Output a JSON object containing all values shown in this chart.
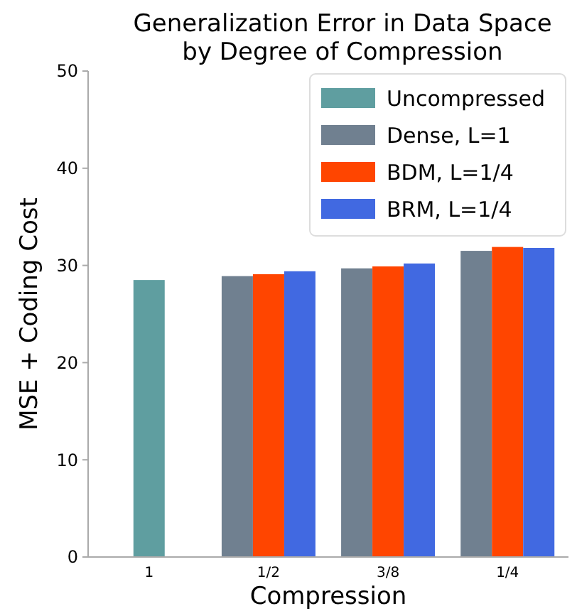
{
  "chart_data": {
    "type": "bar",
    "title": "Generalization Error in Data Space\nby Degree of Compression",
    "xlabel": "Compression",
    "ylabel": "MSE + Coding Cost",
    "categories": [
      "1",
      "1/2",
      "3/8",
      "1/4"
    ],
    "series": [
      {
        "name": "Uncompressed",
        "color": "#5f9ea0",
        "values": [
          28.5,
          null,
          null,
          null
        ]
      },
      {
        "name": "Dense, L=1",
        "color": "#708090",
        "values": [
          null,
          28.9,
          29.7,
          31.5
        ]
      },
      {
        "name": "BDM, L=1/4",
        "color": "#ff4500",
        "values": [
          null,
          29.1,
          29.9,
          31.9
        ]
      },
      {
        "name": "BRM, L=1/4",
        "color": "#4169e1",
        "values": [
          null,
          29.4,
          30.2,
          31.8
        ]
      }
    ],
    "ylim": [
      0,
      50
    ],
    "yticks": [
      0,
      10,
      20,
      30,
      40,
      50
    ],
    "grid": false,
    "legend": "top right"
  }
}
